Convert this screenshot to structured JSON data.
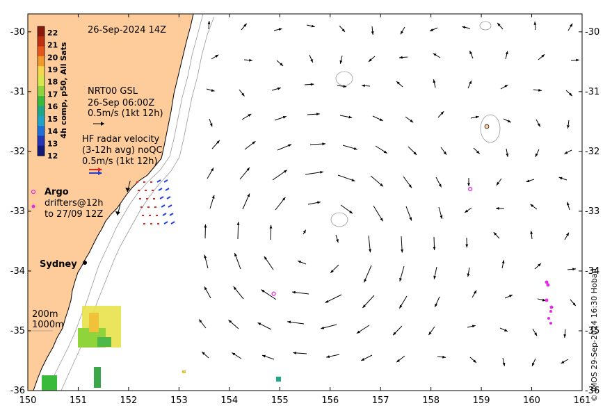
{
  "title": {
    "timestamp": "26-Sep-2024 14Z"
  },
  "axes": {
    "x_ticks": [
      "150",
      "151",
      "152",
      "153",
      "154",
      "155",
      "156",
      "157",
      "158",
      "159",
      "160",
      "161"
    ],
    "y_ticks": [
      "-30",
      "-31",
      "-32",
      "-33",
      "-34",
      "-35",
      "-36"
    ],
    "lon_range": [
      150,
      161
    ],
    "lat_range": [
      -36,
      -29.7
    ]
  },
  "colorbar": {
    "label": "4h comp, p50, All Sats",
    "ticks": [
      "22",
      "21",
      "20",
      "19",
      "18",
      "17",
      "16",
      "15",
      "14",
      "13",
      "12"
    ],
    "range": [
      12,
      22.5
    ]
  },
  "legend": {
    "nrt_title": "NRT00 GSL",
    "nrt_time": "26-Sep 06:00Z",
    "nrt_scale": "0.5m/s (1kt 12h)",
    "hf_title": "HF radar velocity",
    "hf_avg": "(3-12h avg) noQC",
    "hf_scale": "0.5m/s (1kt 12h)",
    "argo_label": "Argo",
    "drifter_label_1": "drifters@12h",
    "drifter_label_2": "to 27/09 12Z",
    "depth_200": "200m",
    "depth_1000": "1000m",
    "city": "Sydney"
  },
  "credit": "© IMOS 29-Sep-2024 16:30 Hobart",
  "colors": {
    "land": "#fdcc9a",
    "coast": "#000000",
    "arrow": "#000000",
    "hf_red": "#e8211b",
    "hf_blue": "#1f3dd8",
    "argo": "#e02ee0"
  },
  "argo_floats": [
    {
      "lon": 154.88,
      "lat": -34.38
    },
    {
      "lon": 158.78,
      "lat": -32.63
    }
  ],
  "eddy": {
    "center_lon": 155.7,
    "center_lat": -33.5
  }
}
